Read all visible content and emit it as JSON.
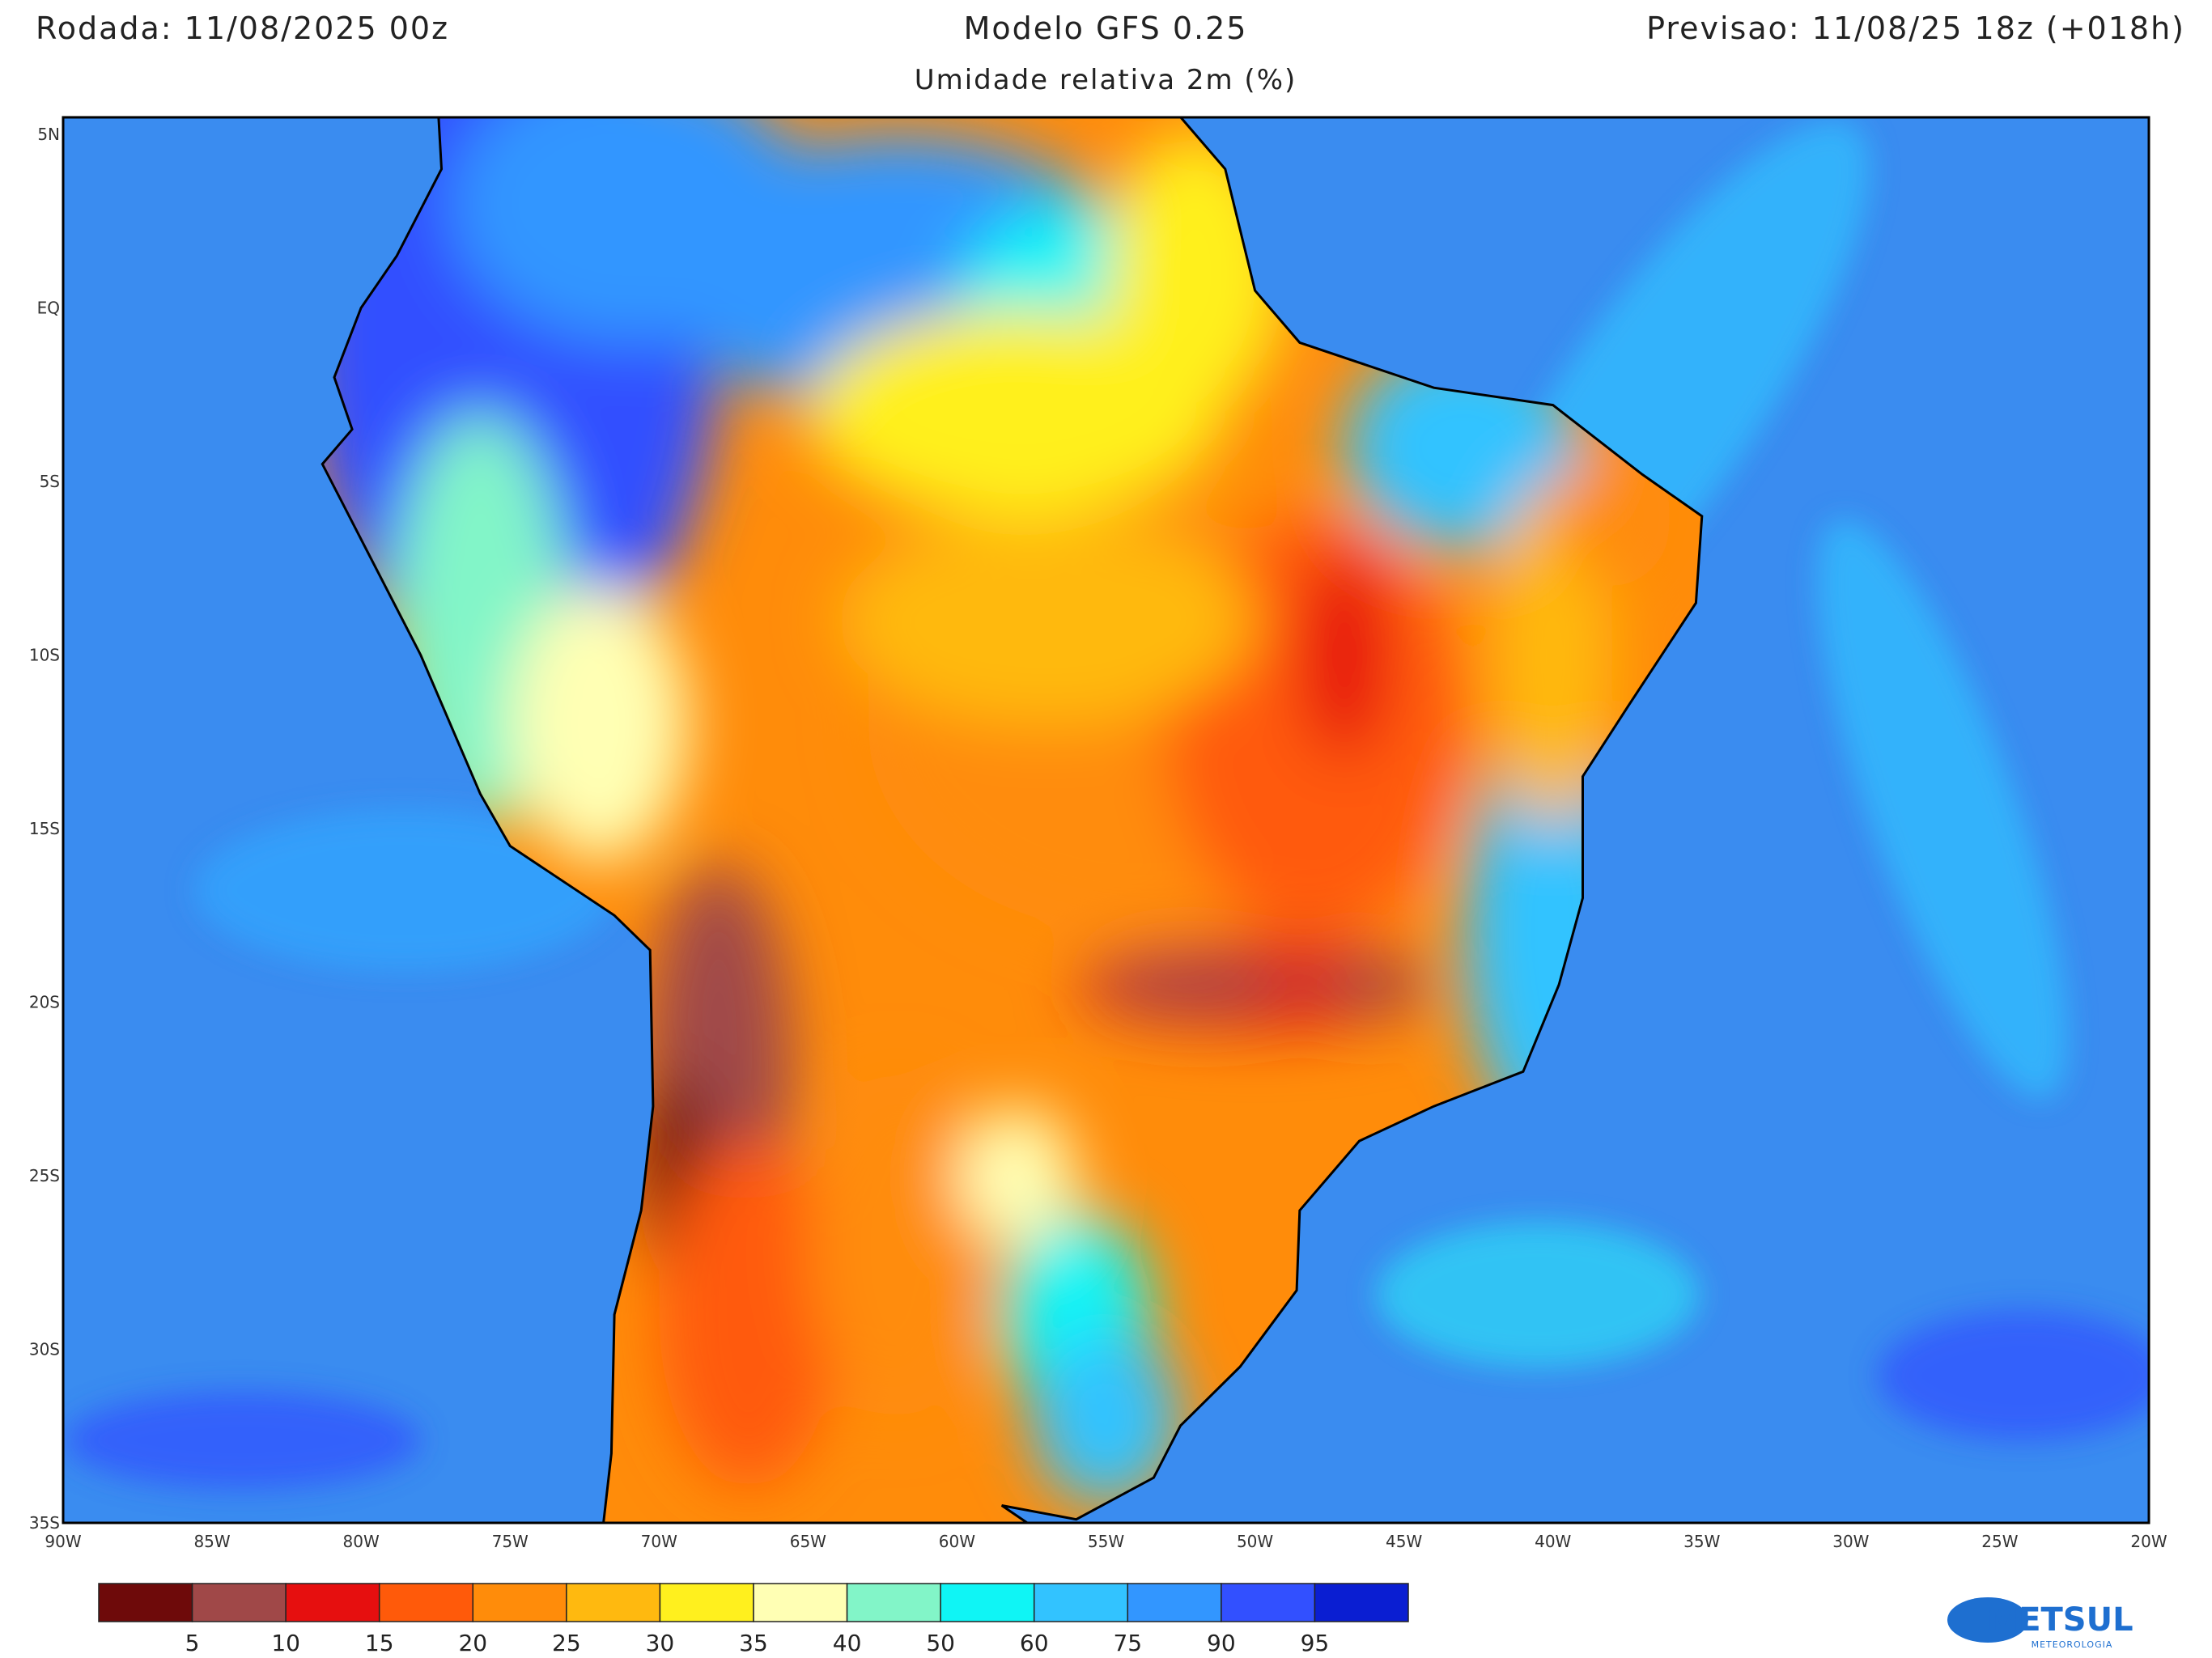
{
  "header": {
    "run": "Rodada: 11/08/2025 00z",
    "model": "Modelo GFS 0.25",
    "forecast": "Previsao: 11/08/25 18z (+018h)",
    "subtitle": "Umidade relativa 2m (%)"
  },
  "map": {
    "lat_labels": [
      "5N",
      "EQ",
      "5S",
      "10S",
      "15S",
      "20S",
      "25S",
      "30S",
      "35S"
    ],
    "lon_labels": [
      "90W",
      "85W",
      "80W",
      "75W",
      "70W",
      "65W",
      "60W",
      "55W",
      "50W",
      "45W",
      "40W",
      "35W",
      "30W",
      "25W",
      "20W"
    ]
  },
  "legend": {
    "colors": [
      "#6e0a0a",
      "#a04848",
      "#e60f0f",
      "#ff5a0a",
      "#ff8c0a",
      "#ffb90f",
      "#fff01e",
      "#ffffb4",
      "#82f5c8",
      "#0ff5f5",
      "#32c3ff",
      "#3296ff",
      "#3250ff",
      "#0a1ed2"
    ],
    "labels": [
      "5",
      "10",
      "15",
      "20",
      "25",
      "30",
      "35",
      "40",
      "50",
      "60",
      "75",
      "90",
      "95"
    ]
  },
  "logo": {
    "name": "METSUL",
    "sub": "METEOROLOGIA"
  }
}
